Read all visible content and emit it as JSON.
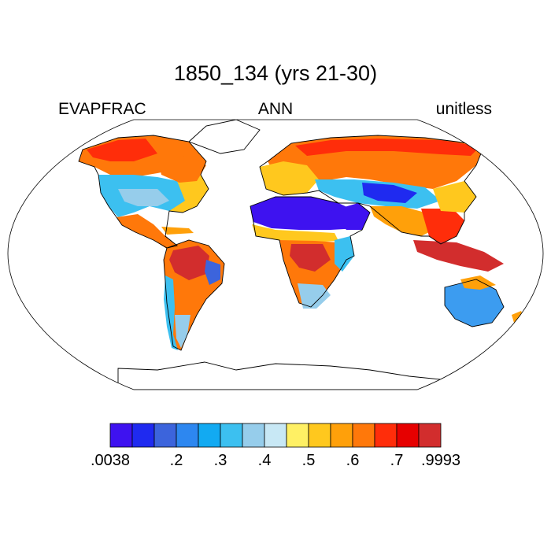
{
  "title": "1850_134 (yrs 21-30)",
  "left_label": "EVAPFRAC",
  "center_label": "ANN",
  "right_label": "unitless",
  "colorbar": {
    "colors": [
      "#3e12f0",
      "#1f2af0",
      "#3c64dc",
      "#2d87f0",
      "#12aaf2",
      "#3cc0f0",
      "#96cdeb",
      "#c8e8f5",
      "#fff064",
      "#ffc81e",
      "#ffa00a",
      "#ff780a",
      "#ff2d0a",
      "#e60000",
      "#d22d2d"
    ],
    "tick_labels": [
      ".0038",
      ".2",
      ".3",
      ".4",
      ".5",
      ".6",
      ".7",
      ".9993"
    ]
  }
}
